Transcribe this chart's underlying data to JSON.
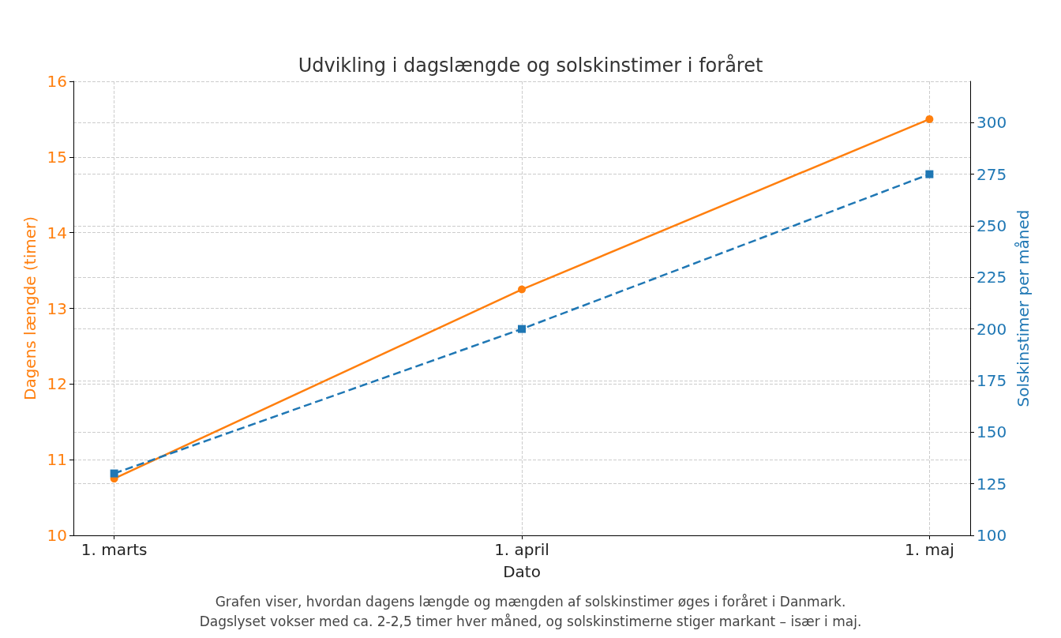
{
  "chart_data": {
    "type": "line",
    "title": "Udvikling i dagslængde og solskinstimer i foråret",
    "xlabel": "Dato",
    "ylabel": "Dagens længde (timer)",
    "y2label": "Solskinstimer per måned",
    "categories": [
      "1. marts",
      "1. april",
      "1. maj"
    ],
    "series": [
      {
        "name": null,
        "color": "#ff7f0e",
        "values": [
          10.75,
          13.25,
          15.5
        ],
        "marker": "circle",
        "line_style": "solid"
      },
      {
        "name": null,
        "color": "#1f77b4",
        "values": [
          130,
          200,
          275
        ],
        "axis": "y2",
        "marker": "square",
        "line_style": "dashed"
      }
    ],
    "ylim": [
      10,
      16
    ],
    "yticks": [
      10,
      11,
      12,
      13,
      14,
      15,
      16
    ],
    "y2lim": [
      100,
      320
    ],
    "y2ticks": [
      100,
      125,
      150,
      175,
      200,
      225,
      250,
      275,
      300
    ],
    "grid": true,
    "annotations": [
      "Grafen viser, hvordan dagens længde og mængden af solskinstimer øges i foråret i Danmark.",
      "Dagslyset vokser med ca. 2-2,5 timer hver måned, og solskinstimerne stiger markant – især i maj."
    ]
  }
}
